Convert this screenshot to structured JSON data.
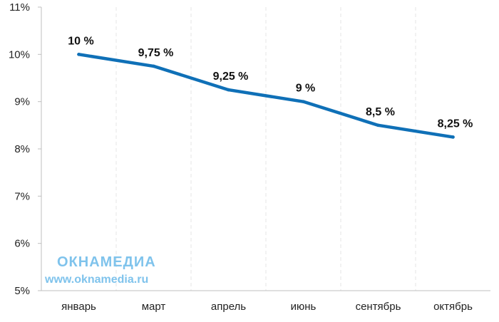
{
  "chart_data": {
    "type": "line",
    "categories": [
      "январь",
      "март",
      "апрель",
      "июнь",
      "сентябрь",
      "октябрь"
    ],
    "series": [
      {
        "values": [
          10,
          9.75,
          9.25,
          9,
          8.5,
          8.25
        ],
        "labels": [
          "10 %",
          "9,75 %",
          "9,25 %",
          "9 %",
          "8,5 %",
          "8,25 %"
        ],
        "color": "#0f70b7"
      }
    ],
    "ylim": [
      5,
      11
    ],
    "yticks": [
      5,
      6,
      7,
      8,
      9,
      10,
      11
    ],
    "ytick_labels": [
      "5%",
      "6%",
      "7%",
      "8%",
      "9%",
      "10%",
      "11%"
    ],
    "grid": "vertical-dashed",
    "title": "",
    "xlabel": "",
    "ylabel": ""
  },
  "watermark": {
    "brand": "ОКНАМЕДИА",
    "url": "www.oknamedia.ru",
    "color": "#7fc3ec"
  }
}
